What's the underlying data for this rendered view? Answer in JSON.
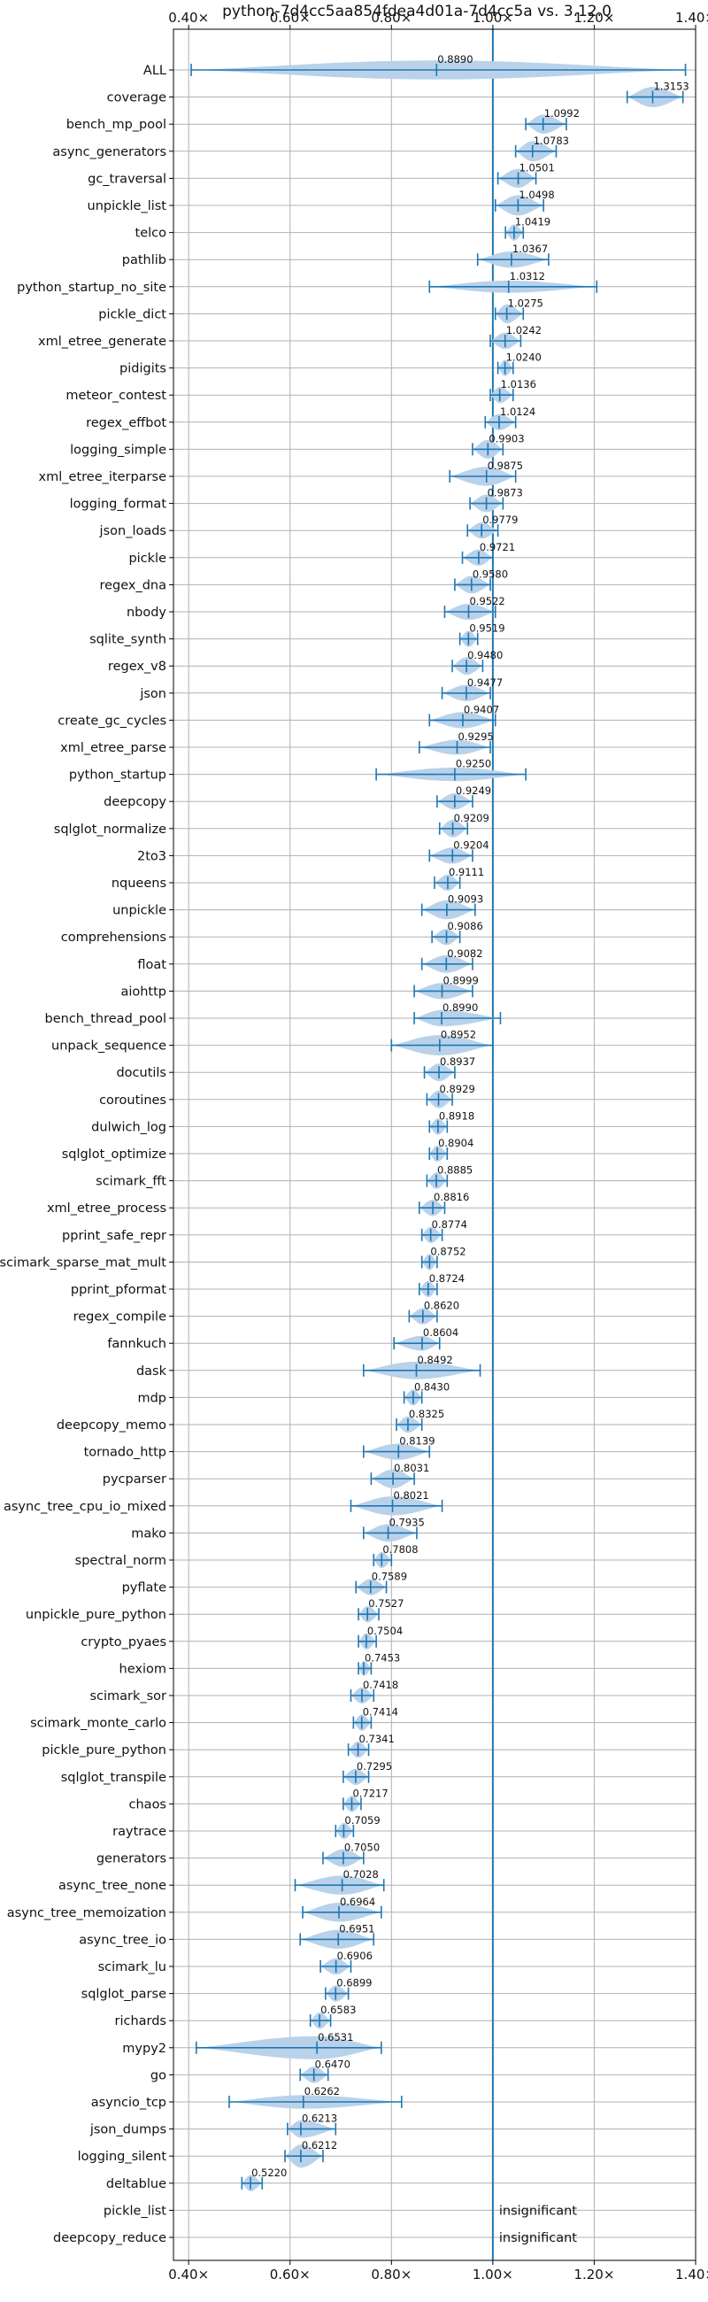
{
  "chart_data": {
    "type": "violin",
    "title": "python-7d4cc5aa854fdea4d01a-7d4cc5a vs. 3.12.0",
    "xlabel": "",
    "ylabel": "",
    "xlim": [
      0.37,
      1.4
    ],
    "x_ticks": [
      0.4,
      0.6,
      0.8,
      1.0,
      1.2,
      1.4
    ],
    "x_tick_labels": [
      "0.40×",
      "0.60×",
      "0.80×",
      "1.00×",
      "1.20×",
      "1.40×"
    ],
    "reference_line": 1.0,
    "grid": true,
    "color": "#1f77b4",
    "fill_color": "#b9d2ea",
    "insignificant_text": "insignificant",
    "benchmarks": [
      {
        "name": "ALL",
        "label": "0.8890",
        "value": 0.889,
        "min": 0.405,
        "max": 1.38,
        "width": 0.7
      },
      {
        "name": "coverage",
        "label": "1.3153",
        "value": 1.3153,
        "min": 1.265,
        "max": 1.375,
        "width": 0.75
      },
      {
        "name": "bench_mp_pool",
        "label": "1.0992",
        "value": 1.0992,
        "min": 1.065,
        "max": 1.145,
        "width": 0.7
      },
      {
        "name": "async_generators",
        "label": "1.0783",
        "value": 1.0783,
        "min": 1.045,
        "max": 1.125,
        "width": 0.75
      },
      {
        "name": "gc_traversal",
        "label": "1.0501",
        "value": 1.0501,
        "min": 1.01,
        "max": 1.085,
        "width": 0.7
      },
      {
        "name": "unpickle_list",
        "label": "1.0498",
        "value": 1.0498,
        "min": 1.005,
        "max": 1.1,
        "width": 0.75
      },
      {
        "name": "telco",
        "label": "1.0419",
        "value": 1.0419,
        "min": 1.025,
        "max": 1.06,
        "width": 0.6
      },
      {
        "name": "pathlib",
        "label": "1.0367",
        "value": 1.0367,
        "min": 0.97,
        "max": 1.11,
        "width": 0.6
      },
      {
        "name": "python_startup_no_site",
        "label": "1.0312",
        "value": 1.0312,
        "min": 0.875,
        "max": 1.205,
        "width": 0.45
      },
      {
        "name": "pickle_dict",
        "label": "1.0275",
        "value": 1.0275,
        "min": 1.005,
        "max": 1.06,
        "width": 0.7
      },
      {
        "name": "xml_etree_generate",
        "label": "1.0242",
        "value": 1.0242,
        "min": 0.995,
        "max": 1.055,
        "width": 0.6
      },
      {
        "name": "pidigits",
        "label": "1.0240",
        "value": 1.024,
        "min": 1.01,
        "max": 1.04,
        "width": 0.6
      },
      {
        "name": "meteor_contest",
        "label": "1.0136",
        "value": 1.0136,
        "min": 0.995,
        "max": 1.04,
        "width": 0.6
      },
      {
        "name": "regex_effbot",
        "label": "1.0124",
        "value": 1.0124,
        "min": 0.985,
        "max": 1.045,
        "width": 0.6
      },
      {
        "name": "logging_simple",
        "label": "0.9903",
        "value": 0.9903,
        "min": 0.96,
        "max": 1.02,
        "width": 0.7
      },
      {
        "name": "xml_etree_iterparse",
        "label": "0.9875",
        "value": 0.9875,
        "min": 0.915,
        "max": 1.045,
        "width": 0.7
      },
      {
        "name": "logging_format",
        "label": "0.9873",
        "value": 0.9873,
        "min": 0.955,
        "max": 1.02,
        "width": 0.65
      },
      {
        "name": "json_loads",
        "label": "0.9779",
        "value": 0.9779,
        "min": 0.95,
        "max": 1.01,
        "width": 0.6
      },
      {
        "name": "pickle",
        "label": "0.9721",
        "value": 0.9721,
        "min": 0.94,
        "max": 1.0,
        "width": 0.6
      },
      {
        "name": "regex_dna",
        "label": "0.9580",
        "value": 0.958,
        "min": 0.925,
        "max": 0.995,
        "width": 0.65
      },
      {
        "name": "nbody",
        "label": "0.9522",
        "value": 0.9522,
        "min": 0.905,
        "max": 1.005,
        "width": 0.6
      },
      {
        "name": "sqlite_synth",
        "label": "0.9519",
        "value": 0.9519,
        "min": 0.935,
        "max": 0.97,
        "width": 0.6
      },
      {
        "name": "regex_v8",
        "label": "0.9480",
        "value": 0.948,
        "min": 0.92,
        "max": 0.98,
        "width": 0.65
      },
      {
        "name": "json",
        "label": "0.9477",
        "value": 0.9477,
        "min": 0.9,
        "max": 0.995,
        "width": 0.6
      },
      {
        "name": "create_gc_cycles",
        "label": "0.9407",
        "value": 0.9407,
        "min": 0.875,
        "max": 1.005,
        "width": 0.6
      },
      {
        "name": "xml_etree_parse",
        "label": "0.9295",
        "value": 0.9295,
        "min": 0.855,
        "max": 0.995,
        "width": 0.55
      },
      {
        "name": "python_startup",
        "label": "0.9250",
        "value": 0.925,
        "min": 0.77,
        "max": 1.065,
        "width": 0.5
      },
      {
        "name": "deepcopy",
        "label": "0.9249",
        "value": 0.9249,
        "min": 0.89,
        "max": 0.96,
        "width": 0.6
      },
      {
        "name": "sqlglot_normalize",
        "label": "0.9209",
        "value": 0.9209,
        "min": 0.895,
        "max": 0.95,
        "width": 0.65
      },
      {
        "name": "2to3",
        "label": "0.9204",
        "value": 0.9204,
        "min": 0.875,
        "max": 0.96,
        "width": 0.6
      },
      {
        "name": "nqueens",
        "label": "0.9111",
        "value": 0.9111,
        "min": 0.885,
        "max": 0.935,
        "width": 0.6
      },
      {
        "name": "unpickle",
        "label": "0.9093",
        "value": 0.9093,
        "min": 0.86,
        "max": 0.965,
        "width": 0.7
      },
      {
        "name": "comprehensions",
        "label": "0.9086",
        "value": 0.9086,
        "min": 0.88,
        "max": 0.935,
        "width": 0.6
      },
      {
        "name": "float",
        "label": "0.9082",
        "value": 0.9082,
        "min": 0.86,
        "max": 0.96,
        "width": 0.65
      },
      {
        "name": "aiohttp",
        "label": "0.8999",
        "value": 0.8999,
        "min": 0.845,
        "max": 0.96,
        "width": 0.6
      },
      {
        "name": "bench_thread_pool",
        "label": "0.8990",
        "value": 0.899,
        "min": 0.845,
        "max": 1.015,
        "width": 0.6
      },
      {
        "name": "unpack_sequence",
        "label": "0.8952",
        "value": 0.8952,
        "min": 0.8,
        "max": 1.0,
        "width": 0.75
      },
      {
        "name": "docutils",
        "label": "0.8937",
        "value": 0.8937,
        "min": 0.865,
        "max": 0.925,
        "width": 0.65
      },
      {
        "name": "coroutines",
        "label": "0.8929",
        "value": 0.8929,
        "min": 0.87,
        "max": 0.92,
        "width": 0.65
      },
      {
        "name": "dulwich_log",
        "label": "0.8918",
        "value": 0.8918,
        "min": 0.875,
        "max": 0.91,
        "width": 0.6
      },
      {
        "name": "sqlglot_optimize",
        "label": "0.8904",
        "value": 0.8904,
        "min": 0.875,
        "max": 0.91,
        "width": 0.6
      },
      {
        "name": "scimark_fft",
        "label": "0.8885",
        "value": 0.8885,
        "min": 0.87,
        "max": 0.91,
        "width": 0.6
      },
      {
        "name": "xml_etree_process",
        "label": "0.8816",
        "value": 0.8816,
        "min": 0.855,
        "max": 0.905,
        "width": 0.6
      },
      {
        "name": "pprint_safe_repr",
        "label": "0.8774",
        "value": 0.8774,
        "min": 0.86,
        "max": 0.9,
        "width": 0.6
      },
      {
        "name": "scimark_sparse_mat_mult",
        "label": "0.8752",
        "value": 0.8752,
        "min": 0.86,
        "max": 0.89,
        "width": 0.6
      },
      {
        "name": "pprint_pformat",
        "label": "0.8724",
        "value": 0.8724,
        "min": 0.855,
        "max": 0.89,
        "width": 0.6
      },
      {
        "name": "regex_compile",
        "label": "0.8620",
        "value": 0.862,
        "min": 0.835,
        "max": 0.89,
        "width": 0.6
      },
      {
        "name": "fannkuch",
        "label": "0.8604",
        "value": 0.8604,
        "min": 0.805,
        "max": 0.895,
        "width": 0.55
      },
      {
        "name": "dask",
        "label": "0.8492",
        "value": 0.8492,
        "min": 0.745,
        "max": 0.975,
        "width": 0.65
      },
      {
        "name": "mdp",
        "label": "0.8430",
        "value": 0.843,
        "min": 0.825,
        "max": 0.86,
        "width": 0.6
      },
      {
        "name": "deepcopy_memo",
        "label": "0.8325",
        "value": 0.8325,
        "min": 0.81,
        "max": 0.86,
        "width": 0.6
      },
      {
        "name": "tornado_http",
        "label": "0.8139",
        "value": 0.8139,
        "min": 0.745,
        "max": 0.875,
        "width": 0.6
      },
      {
        "name": "pycparser",
        "label": "0.8031",
        "value": 0.8031,
        "min": 0.76,
        "max": 0.845,
        "width": 0.7
      },
      {
        "name": "async_tree_cpu_io_mixed",
        "label": "0.8021",
        "value": 0.8021,
        "min": 0.72,
        "max": 0.9,
        "width": 0.7
      },
      {
        "name": "mako",
        "label": "0.7935",
        "value": 0.7935,
        "min": 0.745,
        "max": 0.85,
        "width": 0.65
      },
      {
        "name": "spectral_norm",
        "label": "0.7808",
        "value": 0.7808,
        "min": 0.765,
        "max": 0.8,
        "width": 0.6
      },
      {
        "name": "pyflate",
        "label": "0.7589",
        "value": 0.7589,
        "min": 0.73,
        "max": 0.79,
        "width": 0.6
      },
      {
        "name": "unpickle_pure_python",
        "label": "0.7527",
        "value": 0.7527,
        "min": 0.735,
        "max": 0.775,
        "width": 0.6
      },
      {
        "name": "crypto_pyaes",
        "label": "0.7504",
        "value": 0.7504,
        "min": 0.735,
        "max": 0.77,
        "width": 0.6
      },
      {
        "name": "hexiom",
        "label": "0.7453",
        "value": 0.7453,
        "min": 0.735,
        "max": 0.76,
        "width": 0.55
      },
      {
        "name": "scimark_sor",
        "label": "0.7418",
        "value": 0.7418,
        "min": 0.72,
        "max": 0.765,
        "width": 0.6
      },
      {
        "name": "scimark_monte_carlo",
        "label": "0.7414",
        "value": 0.7414,
        "min": 0.725,
        "max": 0.76,
        "width": 0.6
      },
      {
        "name": "pickle_pure_python",
        "label": "0.7341",
        "value": 0.7341,
        "min": 0.715,
        "max": 0.755,
        "width": 0.6
      },
      {
        "name": "sqlglot_transpile",
        "label": "0.7295",
        "value": 0.7295,
        "min": 0.705,
        "max": 0.755,
        "width": 0.6
      },
      {
        "name": "chaos",
        "label": "0.7217",
        "value": 0.7217,
        "min": 0.705,
        "max": 0.74,
        "width": 0.6
      },
      {
        "name": "raytrace",
        "label": "0.7059",
        "value": 0.7059,
        "min": 0.69,
        "max": 0.725,
        "width": 0.6
      },
      {
        "name": "generators",
        "label": "0.7050",
        "value": 0.705,
        "min": 0.665,
        "max": 0.745,
        "width": 0.65
      },
      {
        "name": "async_tree_none",
        "label": "0.7028",
        "value": 0.7028,
        "min": 0.61,
        "max": 0.785,
        "width": 0.7
      },
      {
        "name": "async_tree_memoization",
        "label": "0.6964",
        "value": 0.6964,
        "min": 0.625,
        "max": 0.78,
        "width": 0.7
      },
      {
        "name": "async_tree_io",
        "label": "0.6951",
        "value": 0.6951,
        "min": 0.62,
        "max": 0.765,
        "width": 0.7
      },
      {
        "name": "scimark_lu",
        "label": "0.6906",
        "value": 0.6906,
        "min": 0.66,
        "max": 0.72,
        "width": 0.6
      },
      {
        "name": "sqlglot_parse",
        "label": "0.6899",
        "value": 0.6899,
        "min": 0.67,
        "max": 0.715,
        "width": 0.6
      },
      {
        "name": "richards",
        "label": "0.6583",
        "value": 0.6583,
        "min": 0.64,
        "max": 0.68,
        "width": 0.6
      },
      {
        "name": "mypy2",
        "label": "0.6531",
        "value": 0.6531,
        "min": 0.415,
        "max": 0.78,
        "width": 0.85
      },
      {
        "name": "go",
        "label": "0.6470",
        "value": 0.647,
        "min": 0.62,
        "max": 0.675,
        "width": 0.6
      },
      {
        "name": "asyncio_tcp",
        "label": "0.6262",
        "value": 0.6262,
        "min": 0.48,
        "max": 0.82,
        "width": 0.5
      },
      {
        "name": "json_dumps",
        "label": "0.6213",
        "value": 0.6213,
        "min": 0.595,
        "max": 0.69,
        "width": 0.65
      },
      {
        "name": "logging_silent",
        "label": "0.6212",
        "value": 0.6212,
        "min": 0.59,
        "max": 0.665,
        "width": 0.85
      },
      {
        "name": "deltablue",
        "label": "0.5220",
        "value": 0.522,
        "min": 0.505,
        "max": 0.545,
        "width": 0.6
      },
      {
        "name": "pickle_list",
        "label": "insignificant",
        "insignificant": true
      },
      {
        "name": "deepcopy_reduce",
        "label": "insignificant",
        "insignificant": true
      }
    ]
  }
}
